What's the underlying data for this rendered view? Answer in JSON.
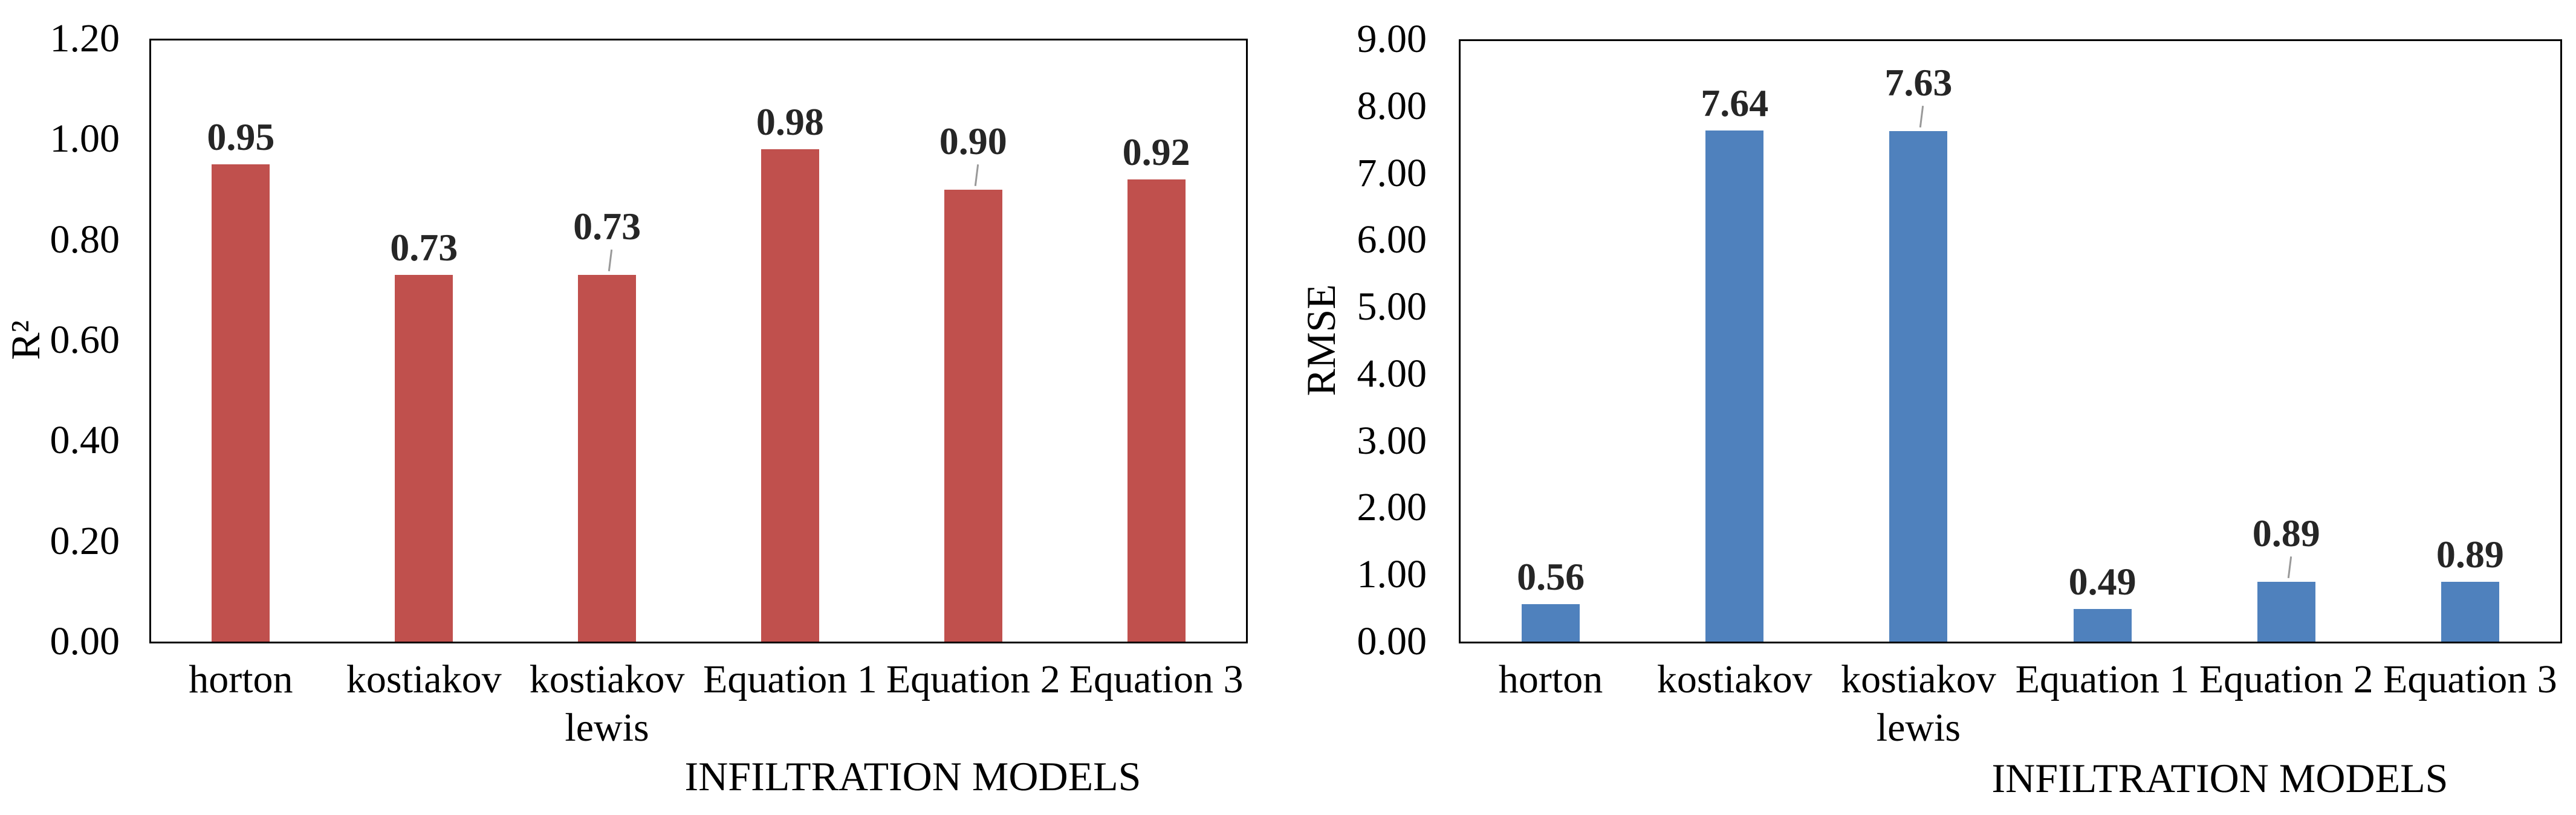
{
  "figure": {
    "background": "#ffffff",
    "text_color": "#000000",
    "data_label_color": "#262626",
    "leader_line_color": "#999999"
  },
  "chart_data": [
    {
      "type": "bar",
      "title": "",
      "ylabel": "R²",
      "xlabel": "INFILTRATION MODELS",
      "categories": [
        "horton",
        "kostiakov",
        "kostiakov\nlewis",
        "Equation 1",
        "Equation 2",
        "Equation 3"
      ],
      "values": [
        0.95,
        0.73,
        0.73,
        0.98,
        0.9,
        0.92
      ],
      "value_labels": [
        "0.95",
        "0.73",
        "0.73",
        "0.98",
        "0.90",
        "0.92"
      ],
      "leader_line_indices": [
        2,
        4
      ],
      "y_ticks": [
        "1.20",
        "1.00",
        "0.80",
        "0.60",
        "0.40",
        "0.20",
        "0.00"
      ],
      "ylim": [
        0,
        1.2
      ],
      "bar_color": "#C0504D",
      "grid": false,
      "legend": false
    },
    {
      "type": "bar",
      "title": "",
      "ylabel": "RMSE",
      "xlabel": "INFILTRATION MODELS",
      "categories": [
        "horton",
        "kostiakov",
        "kostiakov\nlewis",
        "Equation 1",
        "Equation 2",
        "Equation 3"
      ],
      "values": [
        0.56,
        7.64,
        7.63,
        0.49,
        0.89,
        0.89
      ],
      "value_labels": [
        "0.56",
        "7.64",
        "7.63",
        "0.49",
        "0.89",
        "0.89"
      ],
      "leader_line_indices": [
        2,
        4
      ],
      "y_ticks": [
        "9.00",
        "8.00",
        "7.00",
        "6.00",
        "5.00",
        "4.00",
        "3.00",
        "2.00",
        "1.00",
        "0.00"
      ],
      "ylim": [
        0,
        9
      ],
      "bar_color": "#4F81BD",
      "grid": false,
      "legend": false
    }
  ]
}
